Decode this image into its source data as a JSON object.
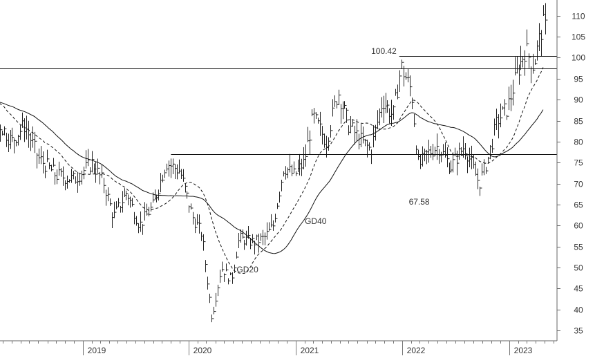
{
  "chart_data": {
    "type": "bar",
    "subtype": "ohlc-weekly",
    "title": "",
    "xlabel": "",
    "ylabel": "",
    "ylim": [
      32,
      113
    ],
    "y_ticks": [
      35,
      40,
      45,
      50,
      55,
      60,
      65,
      70,
      75,
      80,
      85,
      90,
      95,
      100,
      105,
      110
    ],
    "x_range": [
      "2018-01-01",
      "2023-06-05"
    ],
    "x_ticks": [
      {
        "label": "2019",
        "date": "2019-01-01"
      },
      {
        "label": "2020",
        "date": "2020-01-01"
      },
      {
        "label": "2021",
        "date": "2021-01-01"
      },
      {
        "label": "2022",
        "date": "2022-01-01"
      },
      {
        "label": "2023",
        "date": "2023-01-01"
      }
    ],
    "grid": false,
    "price_anchors": [
      [
        "2018-01-01",
        92
      ],
      [
        "2018-03-01",
        86
      ],
      [
        "2018-05-01",
        80
      ],
      [
        "2018-06-15",
        84
      ],
      [
        "2018-08-01",
        76
      ],
      [
        "2018-10-01",
        72
      ],
      [
        "2018-12-01",
        71
      ],
      [
        "2019-02-01",
        75
      ],
      [
        "2019-03-15",
        70
      ],
      [
        "2019-04-15",
        62
      ],
      [
        "2019-06-01",
        68
      ],
      [
        "2019-07-15",
        60
      ],
      [
        "2019-09-01",
        65
      ],
      [
        "2019-10-15",
        75
      ],
      [
        "2019-12-01",
        73
      ],
      [
        "2020-01-15",
        62
      ],
      [
        "2020-02-15",
        58
      ],
      [
        "2020-03-20",
        38
      ],
      [
        "2020-04-20",
        50
      ],
      [
        "2020-05-25",
        47
      ],
      [
        "2020-06-20",
        57
      ],
      [
        "2020-08-10",
        56
      ],
      [
        "2020-09-15",
        57
      ],
      [
        "2020-10-15",
        60
      ],
      [
        "2020-11-20",
        74
      ],
      [
        "2020-12-25",
        72
      ],
      [
        "2021-01-30",
        75
      ],
      [
        "2021-03-01",
        86
      ],
      [
        "2021-04-15",
        80
      ],
      [
        "2021-05-25",
        92
      ],
      [
        "2021-07-01",
        84
      ],
      [
        "2021-08-15",
        80
      ],
      [
        "2021-09-15",
        78
      ],
      [
        "2021-10-25",
        90
      ],
      [
        "2021-12-01",
        86
      ],
      [
        "2021-12-28",
        98
      ],
      [
        "2022-02-01",
        92
      ],
      [
        "2022-02-25",
        74
      ],
      [
        "2022-03-25",
        77
      ],
      [
        "2022-05-01",
        79
      ],
      [
        "2022-06-15",
        74
      ],
      [
        "2022-08-01",
        79
      ],
      [
        "2022-09-20",
        70
      ],
      [
        "2022-10-20",
        76
      ],
      [
        "2022-11-20",
        85
      ],
      [
        "2022-12-25",
        88
      ],
      [
        "2023-01-25",
        96
      ],
      [
        "2023-02-25",
        102
      ],
      [
        "2023-03-25",
        98
      ],
      [
        "2023-04-25",
        108
      ],
      [
        "2023-05-15",
        106
      ]
    ],
    "moving_averages": [
      {
        "name": "GD20",
        "style": "dashed",
        "window_weeks": 20
      },
      {
        "name": "GD40",
        "style": "solid",
        "window_weeks": 40
      }
    ],
    "horizontal_lines": [
      {
        "value": 97.5,
        "from": "2018-01-01",
        "to": "2023-06-05"
      },
      {
        "value": 77,
        "from": "2019-11-01",
        "to": "2023-06-05"
      },
      {
        "value": 100.42,
        "from": "2021-12-22",
        "to": "2023-06-05"
      }
    ],
    "annotations": [
      {
        "text": "100.42",
        "date": "2021-12-22",
        "value": 100.42,
        "anchor": "left-of"
      },
      {
        "text": "67.58",
        "date": "2022-02-28",
        "value": 67.58,
        "anchor": "below"
      },
      {
        "text": "GD20",
        "date": "2020-07-20",
        "value": 51.5,
        "anchor": "below"
      },
      {
        "text": "GD40",
        "date": "2021-02-01",
        "value": 61,
        "anchor": "right"
      }
    ]
  }
}
